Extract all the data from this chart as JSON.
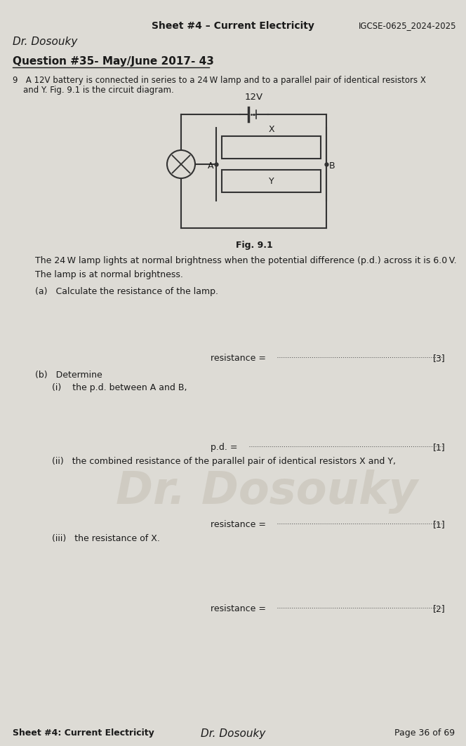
{
  "bg_color": "#dddbd5",
  "header_center": "Sheet #4 – Current Electricity",
  "header_right": "IGCSE-0625_2024-2025",
  "header_left_italic": "Dr. Dosouky",
  "question_title": "Question #35- May/June 2017- 43",
  "q9_line1": "9   A 12V battery is connected in series to a 24 W lamp and to a parallel pair of identical resistors X",
  "q9_line2": "    and Y. Fig. 9.1 is the circuit diagram.",
  "fig_label": "Fig. 9.1",
  "desc1": "The 24 W lamp lights at normal brightness when the potential difference (p.d.) across it is 6.0 V.",
  "desc2": "The lamp is at normal brightness.",
  "part_a_label": "(a)   Calculate the resistance of the lamp.",
  "part_b_label": "(b)   Determine",
  "part_bi_label": "      (i)    the p.d. between A and B,",
  "part_bii_label": "      (ii)   the combined resistance of the parallel pair of identical resistors X and Y,",
  "part_biii_label": "      (iii)   the resistance of X.",
  "footer_left": "Sheet #4: Current Electricity",
  "footer_center_italic": "Dr. Dosouky",
  "footer_right": "Page 36 of 69",
  "watermark": "Dr. Dosouky",
  "text_color": "#1a1a1a",
  "line_color": "#444444",
  "circuit_color": "#333333"
}
